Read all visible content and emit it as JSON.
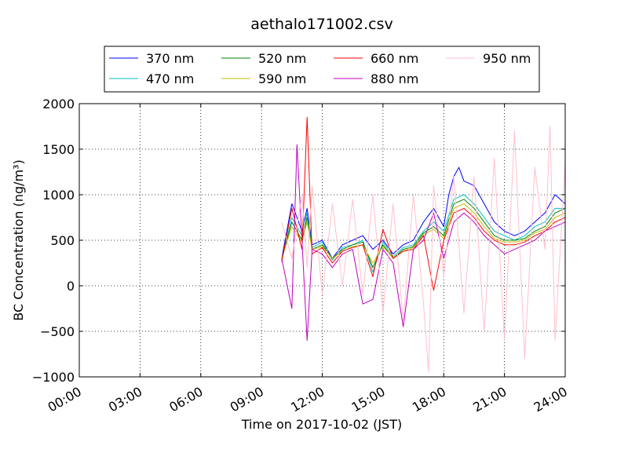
{
  "chart_data": {
    "type": "line",
    "title": "aethalo171002.csv",
    "xlabel": "Time on 2017-10-02 (JST)",
    "ylabel": "BC Concentration (ng/m³)",
    "xlim": [
      "00:00",
      "24:00"
    ],
    "ylim": [
      -1000,
      2000
    ],
    "grid": true,
    "legend_placement": "top-center",
    "xticks": [
      "00:00",
      "03:00",
      "06:00",
      "09:00",
      "12:00",
      "15:00",
      "18:00",
      "21:00",
      "24:00"
    ],
    "yticks": [
      "−1000",
      "−500",
      "0",
      "500",
      "1000",
      "1500",
      "2000"
    ],
    "series": [
      {
        "name": "370 nm",
        "color": "#0000ff",
        "x": [
          "10:00",
          "10:30",
          "11:00",
          "11:15",
          "11:30",
          "12:00",
          "12:30",
          "13:00",
          "13:30",
          "14:00",
          "14:30",
          "15:00",
          "15:30",
          "16:00",
          "16:30",
          "17:00",
          "17:30",
          "18:00",
          "18:15",
          "18:30",
          "18:45",
          "19:00",
          "19:30",
          "20:00",
          "20:30",
          "21:00",
          "21:30",
          "22:00",
          "22:30",
          "23:00",
          "23:30",
          "24:00"
        ],
        "y": [
          300,
          900,
          600,
          850,
          450,
          500,
          300,
          450,
          500,
          550,
          400,
          500,
          350,
          450,
          500,
          700,
          850,
          650,
          1000,
          1200,
          1300,
          1150,
          1100,
          900,
          700,
          600,
          550,
          600,
          700,
          800,
          1000,
          900
        ]
      },
      {
        "name": "470 nm",
        "color": "#00bfbf",
        "x": [
          "10:00",
          "10:30",
          "11:00",
          "11:15",
          "11:30",
          "12:00",
          "12:30",
          "13:00",
          "13:30",
          "14:00",
          "14:30",
          "15:00",
          "15:30",
          "16:00",
          "16:30",
          "17:00",
          "17:30",
          "18:00",
          "18:30",
          "19:00",
          "19:30",
          "20:00",
          "20:30",
          "21:00",
          "21:30",
          "22:00",
          "22:30",
          "23:00",
          "23:30",
          "24:00"
        ],
        "y": [
          280,
          750,
          550,
          800,
          420,
          480,
          280,
          420,
          450,
          500,
          150,
          480,
          320,
          420,
          450,
          600,
          700,
          600,
          950,
          1000,
          900,
          750,
          600,
          550,
          500,
          550,
          650,
          700,
          850,
          850
        ]
      },
      {
        "name": "520 nm",
        "color": "#008000",
        "x": [
          "10:00",
          "10:30",
          "11:00",
          "11:15",
          "11:30",
          "12:00",
          "12:30",
          "13:00",
          "13:30",
          "14:00",
          "14:30",
          "15:00",
          "15:30",
          "16:00",
          "16:30",
          "17:00",
          "17:30",
          "18:00",
          "18:30",
          "19:00",
          "19:30",
          "20:00",
          "20:30",
          "21:00",
          "21:30",
          "22:00",
          "22:30",
          "23:00",
          "23:30",
          "24:00"
        ],
        "y": [
          300,
          700,
          500,
          750,
          400,
          450,
          300,
          400,
          450,
          480,
          200,
          450,
          300,
          400,
          430,
          580,
          650,
          550,
          900,
          950,
          850,
          700,
          550,
          500,
          500,
          520,
          600,
          650,
          800,
          850
        ]
      },
      {
        "name": "590 nm",
        "color": "#bfbf00",
        "x": [
          "10:00",
          "10:30",
          "11:00",
          "11:15",
          "11:30",
          "12:00",
          "12:30",
          "13:00",
          "13:30",
          "14:00",
          "14:30",
          "15:00",
          "15:30",
          "16:00",
          "16:30",
          "17:00",
          "17:30",
          "18:00",
          "18:30",
          "19:00",
          "19:30",
          "20:00",
          "20:30",
          "21:00",
          "21:30",
          "22:00",
          "22:30",
          "23:00",
          "23:30",
          "24:00"
        ],
        "y": [
          300,
          650,
          480,
          700,
          400,
          430,
          300,
          380,
          430,
          450,
          250,
          430,
          300,
          380,
          420,
          560,
          620,
          520,
          850,
          900,
          800,
          650,
          520,
          480,
          480,
          500,
          580,
          620,
          750,
          800
        ]
      },
      {
        "name": "660 nm",
        "color": "#ff0000",
        "x": [
          "10:00",
          "10:30",
          "11:00",
          "11:15",
          "11:30",
          "12:00",
          "12:30",
          "13:00",
          "13:30",
          "14:00",
          "14:30",
          "15:00",
          "15:30",
          "16:00",
          "16:30",
          "17:00",
          "17:30",
          "18:00",
          "18:30",
          "19:00",
          "19:30",
          "20:00",
          "20:30",
          "21:00",
          "21:30",
          "22:00",
          "22:30",
          "23:00",
          "23:30",
          "24:00"
        ],
        "y": [
          260,
          850,
          400,
          1850,
          350,
          420,
          250,
          380,
          420,
          450,
          100,
          620,
          300,
          380,
          400,
          550,
          -50,
          500,
          800,
          850,
          750,
          600,
          500,
          450,
          450,
          480,
          550,
          600,
          700,
          750
        ]
      },
      {
        "name": "880 nm",
        "color": "#bf00bf",
        "x": [
          "10:00",
          "10:30",
          "10:45",
          "11:00",
          "11:15",
          "11:30",
          "12:00",
          "12:30",
          "13:00",
          "13:30",
          "14:00",
          "14:30",
          "15:00",
          "15:30",
          "16:00",
          "16:30",
          "17:00",
          "17:30",
          "18:00",
          "18:30",
          "19:00",
          "19:30",
          "20:00",
          "20:30",
          "21:00",
          "21:30",
          "22:00",
          "22:30",
          "23:00",
          "23:30",
          "24:00"
        ],
        "y": [
          300,
          -250,
          1550,
          500,
          -600,
          400,
          350,
          200,
          350,
          400,
          -200,
          -150,
          400,
          250,
          -450,
          400,
          500,
          800,
          300,
          700,
          800,
          700,
          550,
          450,
          350,
          400,
          450,
          500,
          600,
          650,
          700
        ]
      },
      {
        "name": "950 nm",
        "color": "#ffc0cb",
        "x": [
          "10:00",
          "10:30",
          "11:00",
          "11:15",
          "11:30",
          "12:00",
          "12:30",
          "13:00",
          "13:30",
          "14:00",
          "14:30",
          "15:00",
          "15:30",
          "16:00",
          "16:30",
          "17:00",
          "17:15",
          "17:30",
          "18:00",
          "18:30",
          "19:00",
          "19:30",
          "20:00",
          "20:30",
          "21:00",
          "21:30",
          "22:00",
          "22:30",
          "23:00",
          "23:15",
          "23:30",
          "24:00"
        ],
        "y": [
          700,
          300,
          1000,
          200,
          1100,
          -100,
          900,
          0,
          950,
          -100,
          1000,
          -300,
          900,
          -400,
          1000,
          -200,
          -950,
          1100,
          100,
          1200,
          -300,
          1200,
          -500,
          1400,
          -600,
          1700,
          -800,
          1300,
          400,
          1750,
          -600,
          1350
        ]
      }
    ]
  }
}
